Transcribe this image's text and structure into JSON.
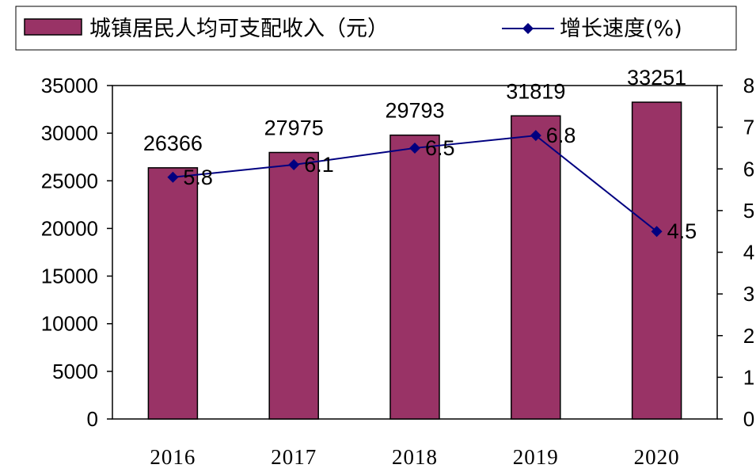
{
  "chart_data": {
    "type": "bar+line",
    "categories": [
      "2016",
      "2017",
      "2018",
      "2019",
      "2020"
    ],
    "series": [
      {
        "name": "城镇居民人均可支配收入（元）",
        "type": "bar",
        "axis": "left",
        "values": [
          26366,
          27975,
          29793,
          31819,
          33251
        ],
        "color": "#993366"
      },
      {
        "name": "增长速度(%)",
        "type": "line",
        "axis": "right",
        "values": [
          5.8,
          6.1,
          6.5,
          6.8,
          4.5
        ],
        "color": "#000080"
      }
    ],
    "y_left": {
      "ylim": [
        0,
        35000
      ],
      "ticks": [
        "0",
        "5000",
        "10000",
        "15000",
        "20000",
        "25000",
        "30000",
        "35000"
      ]
    },
    "y_right": {
      "ylim": [
        0,
        8
      ],
      "ticks": [
        "0",
        "1",
        "2",
        "3",
        "4",
        "5",
        "6",
        "7",
        "8"
      ]
    },
    "grid": false,
    "legend": "top"
  }
}
